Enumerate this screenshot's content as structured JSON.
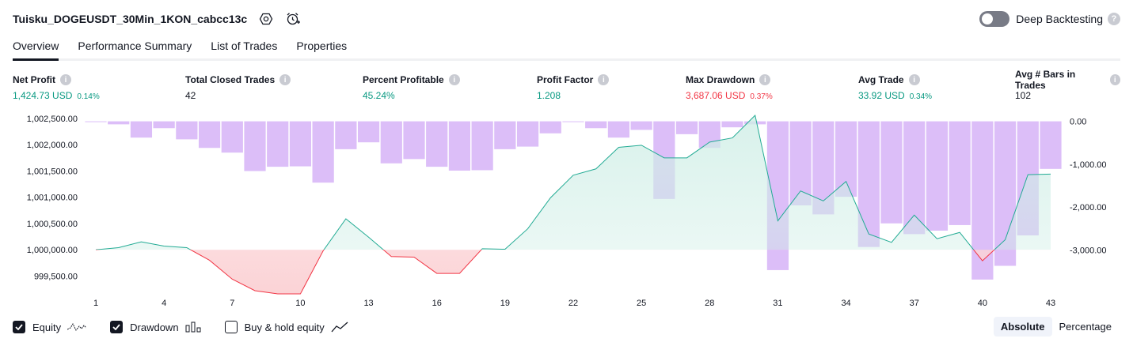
{
  "header": {
    "title": "Tuisku_DOGEUSDT_30Min_1KON_cabcc13c",
    "deep_backtesting_label": "Deep Backtesting",
    "help_glyph": "?"
  },
  "tabs": [
    {
      "label": "Overview",
      "active": true
    },
    {
      "label": "Performance Summary",
      "active": false
    },
    {
      "label": "List of Trades",
      "active": false
    },
    {
      "label": "Properties",
      "active": false
    }
  ],
  "metrics": [
    {
      "label": "Net Profit",
      "value": "1,424.73 USD",
      "pct": "0.14%",
      "color": "#089981"
    },
    {
      "label": "Total Closed Trades",
      "value": "42",
      "pct": "",
      "color": "#131722"
    },
    {
      "label": "Percent Profitable",
      "value": "45.24%",
      "pct": "",
      "color": "#089981"
    },
    {
      "label": "Profit Factor",
      "value": "1.208",
      "pct": "",
      "color": "#089981"
    },
    {
      "label": "Max Drawdown",
      "value": "3,687.06 USD",
      "pct": "0.37%",
      "color": "#f23645"
    },
    {
      "label": "Avg Trade",
      "value": "33.92 USD",
      "pct": "0.34%",
      "color": "#089981"
    },
    {
      "label": "Avg # Bars in Trades",
      "value": "102",
      "pct": "",
      "color": "#131722"
    }
  ],
  "legend": {
    "equity": {
      "label": "Equity",
      "checked": true
    },
    "drawdown": {
      "label": "Drawdown",
      "checked": true
    },
    "buy_hold": {
      "label": "Buy & hold equity",
      "checked": false
    }
  },
  "modes": {
    "absolute": "Absolute",
    "percentage": "Percentage",
    "selected": "Absolute"
  },
  "colors": {
    "equity_line": "#22ab94",
    "equity_fill": "#cfeee6",
    "equity_negative": "#f23645",
    "negative_fill": "#fbd3d6",
    "drawdown_bar": "#dcbef8",
    "overlap_bar": "#b9c0e6"
  },
  "chart_data": {
    "type": "area",
    "x_ticks": [
      1,
      4,
      7,
      10,
      13,
      16,
      19,
      22,
      25,
      28,
      31,
      34,
      37,
      40,
      43
    ],
    "x_range": [
      1,
      43
    ],
    "left_axis": {
      "ticks": [
        "1,002,500.00",
        "1,002,000.00",
        "1,001,500.00",
        "1,001,000.00",
        "1,000,500.00",
        "1,000,000.00",
        "999,500.00"
      ],
      "tick_values": [
        1002500,
        1002000,
        1001500,
        1001000,
        1000500,
        1000000,
        999500
      ],
      "range": [
        999220,
        1002650
      ]
    },
    "right_axis": {
      "ticks": [
        "0.00",
        "-1,000.00",
        "-2,000.00",
        "-3,000.00"
      ],
      "tick_values": [
        0,
        -1000,
        -2000,
        -3000
      ],
      "range": [
        -3950,
        250
      ]
    },
    "series": [
      {
        "name": "Equity",
        "type": "area",
        "baseline": 1000000,
        "x": [
          1,
          2,
          3,
          4,
          5,
          6,
          7,
          8,
          9,
          10,
          11,
          12,
          13,
          14,
          15,
          16,
          17,
          18,
          19,
          20,
          21,
          22,
          23,
          24,
          25,
          26,
          27,
          28,
          29,
          30,
          31,
          32,
          33,
          34,
          35,
          36,
          37,
          38,
          39,
          40,
          41,
          42,
          43
        ],
        "values": [
          1000000,
          1000040,
          1000150,
          1000070,
          1000040,
          999800,
          999440,
          999220,
          999160,
          999160,
          999980,
          1000590,
          1000240,
          999870,
          999860,
          999550,
          999550,
          1000020,
          1000010,
          1000400,
          1000990,
          1001420,
          1001540,
          1001950,
          1001990,
          1001750,
          1001750,
          1002050,
          1002130,
          1002560,
          1000550,
          1001120,
          1000930,
          1001300,
          1000300,
          1000140,
          1000660,
          1000210,
          1000330,
          999790,
          1000190,
          1001430,
          1001440
        ]
      },
      {
        "name": "Drawdown",
        "type": "bar",
        "x": [
          1,
          2,
          3,
          4,
          5,
          6,
          7,
          8,
          9,
          10,
          11,
          12,
          13,
          14,
          15,
          16,
          17,
          18,
          19,
          20,
          21,
          22,
          23,
          24,
          25,
          26,
          27,
          28,
          29,
          30,
          31,
          32,
          33,
          34,
          35,
          36,
          37,
          38,
          39,
          40,
          41,
          42,
          43
        ],
        "values": [
          0,
          -70,
          -380,
          -160,
          -420,
          -620,
          -730,
          -1160,
          -1060,
          -1050,
          -1430,
          -650,
          -490,
          -980,
          -880,
          -1060,
          -1150,
          -1140,
          -650,
          -590,
          -280,
          0,
          -160,
          -380,
          -200,
          -1810,
          -300,
          -620,
          -140,
          -70,
          -3470,
          -1960,
          -2170,
          -1760,
          -2930,
          -2380,
          -2630,
          -2550,
          -2420,
          -3690,
          -3370,
          -2660,
          -1110
        ]
      }
    ]
  }
}
